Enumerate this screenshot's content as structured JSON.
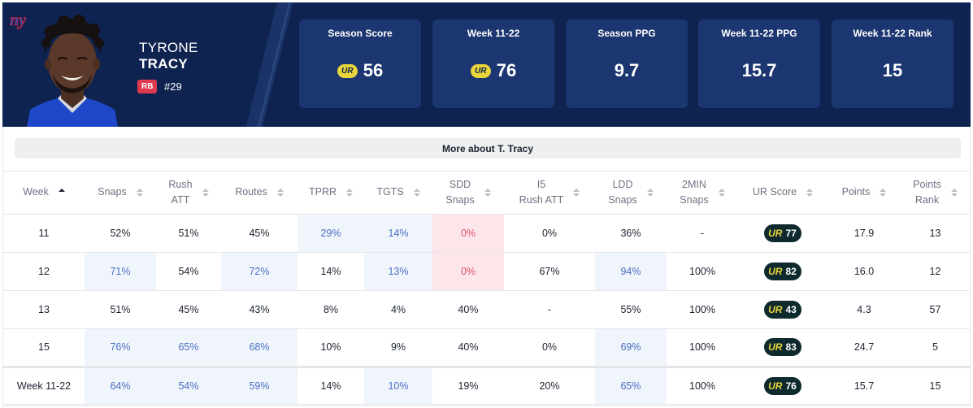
{
  "player": {
    "first_name": "TYRONE",
    "last_name": "TRACY",
    "position": "RB",
    "number": "#29",
    "team_logo_icon": "giants-logo-icon"
  },
  "stat_cards": [
    {
      "label": "Season Score",
      "value": "56",
      "has_ur": true
    },
    {
      "label": "Week 11-22",
      "value": "76",
      "has_ur": true
    },
    {
      "label": "Season PPG",
      "value": "9.7",
      "has_ur": false
    },
    {
      "label": "Week 11-22 PPG",
      "value": "15.7",
      "has_ur": false
    },
    {
      "label": "Week 11-22 Rank",
      "value": "15",
      "has_ur": false
    }
  ],
  "ur_glyph": "UR",
  "more_about_label": "More about T. Tracy",
  "table": {
    "columns": [
      {
        "label1": "Week",
        "label2": "",
        "sort": "asc"
      },
      {
        "label1": "Snaps",
        "label2": "",
        "sort": "none"
      },
      {
        "label1": "Rush",
        "label2": "ATT",
        "sort": "none"
      },
      {
        "label1": "Routes",
        "label2": "",
        "sort": "none"
      },
      {
        "label1": "TPRR",
        "label2": "",
        "sort": "none"
      },
      {
        "label1": "TGTS",
        "label2": "",
        "sort": "none"
      },
      {
        "label1": "SDD",
        "label2": "Snaps",
        "sort": "none"
      },
      {
        "label1": "I5",
        "label2": "Rush ATT",
        "sort": "none"
      },
      {
        "label1": "LDD",
        "label2": "Snaps",
        "sort": "none"
      },
      {
        "label1": "2MIN",
        "label2": "Snaps",
        "sort": "none"
      },
      {
        "label1": "UR Score",
        "label2": "",
        "sort": "none"
      },
      {
        "label1": "Points",
        "label2": "",
        "sort": "none"
      },
      {
        "label1": "Points",
        "label2": "Rank",
        "sort": "none"
      }
    ],
    "rows": [
      {
        "cells": [
          "11",
          "52%",
          "51%",
          "45%",
          "29%",
          "14%",
          "0%",
          "0%",
          "36%",
          "-",
          "77",
          "17.9",
          "13"
        ],
        "hl": [
          "",
          "",
          "",
          "",
          "blue",
          "blue",
          "red",
          "",
          "",
          "",
          "",
          "",
          ""
        ]
      },
      {
        "cells": [
          "12",
          "71%",
          "54%",
          "72%",
          "14%",
          "13%",
          "0%",
          "67%",
          "94%",
          "100%",
          "82",
          "16.0",
          "12"
        ],
        "hl": [
          "",
          "blue",
          "",
          "blue",
          "",
          "blue",
          "red",
          "",
          "blue",
          "",
          "",
          "",
          ""
        ]
      },
      {
        "cells": [
          "13",
          "51%",
          "45%",
          "43%",
          "8%",
          "4%",
          "40%",
          "-",
          "55%",
          "100%",
          "43",
          "4.3",
          "57"
        ],
        "hl": [
          "",
          "",
          "",
          "",
          "",
          "",
          "",
          "",
          "",
          "",
          "",
          "",
          ""
        ]
      },
      {
        "cells": [
          "15",
          "76%",
          "65%",
          "68%",
          "10%",
          "9%",
          "40%",
          "0%",
          "69%",
          "100%",
          "83",
          "24.7",
          "5"
        ],
        "hl": [
          "",
          "blue",
          "blue",
          "blue",
          "",
          "",
          "",
          "",
          "blue",
          "",
          "",
          "",
          ""
        ]
      }
    ],
    "summary": {
      "cells": [
        "Week 11-22",
        "64%",
        "54%",
        "59%",
        "14%",
        "10%",
        "19%",
        "20%",
        "65%",
        "100%",
        "76",
        "15.7",
        "15"
      ],
      "hl": [
        "",
        "blue",
        "blue",
        "blue",
        "",
        "blue",
        "",
        "",
        "blue",
        "",
        "",
        "",
        ""
      ]
    }
  }
}
